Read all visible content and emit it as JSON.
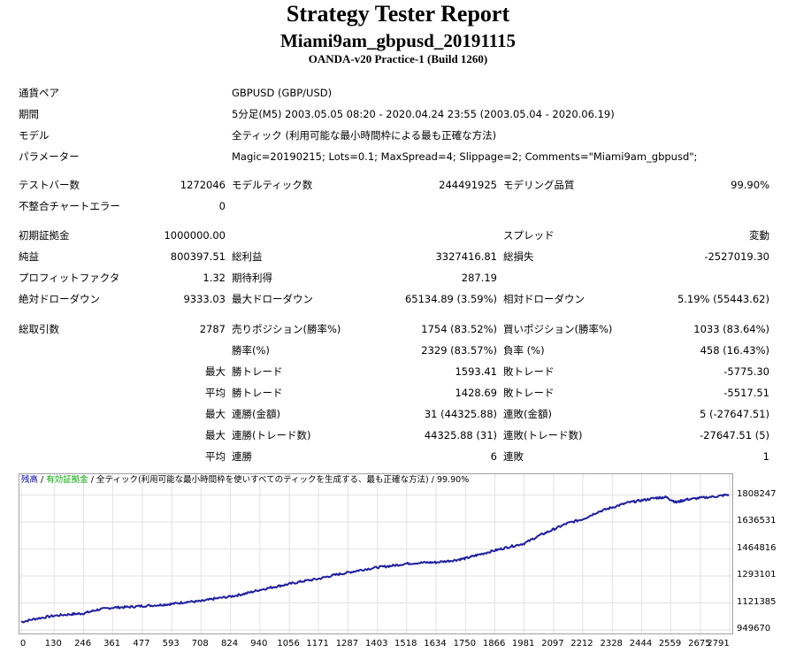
{
  "header": {
    "title": "Strategy Tester Report",
    "ea_name": "Miami9am_gbpusd_20191115",
    "server": "OANDA-v20 Practice-1 (Build 1260)"
  },
  "settings": [
    {
      "label": "通貨ペア",
      "value": "GBPUSD (GBP/USD)"
    },
    {
      "label": "期間",
      "value": "5分足(M5) 2003.05.05 08:20 - 2020.04.24 23:55 (2003.05.04 - 2020.06.19)"
    },
    {
      "label": "モデル",
      "value": "全ティック (利用可能な最小時間枠による最も正確な方法)"
    },
    {
      "label": "パラメーター",
      "value": "Magic=20190215; Lots=0.1; MaxSpread=4; Slippage=2; Comments=\"Miami9am_gbpusd\";"
    }
  ],
  "stats": {
    "bars_label": "テストバー数",
    "bars_value": "1272046",
    "ticks_label": "モデルティック数",
    "ticks_value": "244491925",
    "quality_label": "モデリング品質",
    "quality_value": "99.90%",
    "mismatch_label": "不整合チャートエラー",
    "mismatch_value": "0",
    "deposit_label": "初期証拠金",
    "deposit_value": "1000000.00",
    "spread_label": "スプレッド",
    "spread_value": "変動",
    "net_label": "純益",
    "net_value": "800397.51",
    "gross_profit_label": "総利益",
    "gross_profit_value": "3327416.81",
    "gross_loss_label": "総損失",
    "gross_loss_value": "-2527019.30",
    "pf_label": "プロフィットファクタ",
    "pf_value": "1.32",
    "payoff_label": "期待利得",
    "payoff_value": "287.19",
    "abs_dd_label": "絶対ドローダウン",
    "abs_dd_value": "9333.03",
    "max_dd_label": "最大ドローダウン",
    "max_dd_value": "65134.89 (3.59%)",
    "rel_dd_label": "相対ドローダウン",
    "rel_dd_value": "5.19% (55443.62)",
    "total_trades_label": "総取引数",
    "total_trades_value": "2787",
    "short_label": "売りポジション(勝率%)",
    "short_value": "1754 (83.52%)",
    "long_label": "買いポジション(勝率%)",
    "long_value": "1033 (83.64%)",
    "win_pct_label": "勝率(%)",
    "win_pct_value": "2329 (83.57%)",
    "loss_pct_label": "負率 (%)",
    "loss_pct_value": "458 (16.43%)",
    "max_label": "最大",
    "avg_label": "平均",
    "largest_win_label": "勝トレード",
    "largest_win_value": "1593.41",
    "largest_loss_label": "敗トレード",
    "largest_loss_value": "-5775.30",
    "average_win_label": "勝トレード",
    "average_win_value": "1428.69",
    "average_loss_label": "敗トレード",
    "average_loss_value": "-5517.51",
    "max_cons_wins_label": "連勝(金額)",
    "max_cons_wins_value": "31 (44325.88)",
    "max_cons_losses_label": "連敗(金額)",
    "max_cons_losses_value": "5 (-27647.51)",
    "max_cons_profit_label": "連勝(トレード数)",
    "max_cons_profit_value": "44325.88 (31)",
    "max_cons_loss_label": "連敗(トレード数)",
    "max_cons_loss_value": "-27647.51 (5)",
    "avg_cons_wins_label": "連勝",
    "avg_cons_wins_value": "6",
    "avg_cons_losses_label": "連敗",
    "avg_cons_losses_value": "1"
  },
  "chart_caption": {
    "balance": "残高",
    "sep1": " / ",
    "equity": "有効証拠金",
    "sep2": " / ",
    "rest": "全ティック(利用可能な最小時間枠を使いすべてのティックを生成する、最も正確な方法) / 99.90%",
    "balance_color": "#0000aa",
    "equity_color": "#00aa00"
  },
  "chart_data": {
    "type": "line",
    "title": "",
    "xlabel": "",
    "ylabel": "",
    "x_ticks": [
      0,
      130,
      246,
      361,
      477,
      593,
      708,
      824,
      940,
      1056,
      1171,
      1287,
      1403,
      1518,
      1634,
      1750,
      1866,
      1981,
      2097,
      2212,
      2328,
      2444,
      2559,
      2675,
      2791
    ],
    "y_ticks": [
      949670,
      1121385,
      1293101,
      1464816,
      1636531,
      1808247
    ],
    "xlim": [
      0,
      2787
    ],
    "ylim": [
      949670,
      1851000
    ],
    "series": [
      {
        "color": "#1f1fa0",
        "x": [
          0,
          60,
          130,
          200,
          246,
          300,
          361,
          420,
          477,
          540,
          593,
          650,
          708,
          760,
          824,
          880,
          940,
          1000,
          1056,
          1110,
          1171,
          1230,
          1287,
          1340,
          1403,
          1460,
          1518,
          1580,
          1634,
          1700,
          1750,
          1800,
          1866,
          1920,
          1981,
          2040,
          2097,
          2150,
          2212,
          2270,
          2328,
          2390,
          2444,
          2500,
          2540,
          2580,
          2620,
          2675,
          2740,
          2787
        ],
        "y": [
          1000000,
          1022000,
          1040000,
          1050000,
          1055000,
          1078000,
          1092000,
          1095000,
          1102000,
          1108000,
          1115000,
          1128000,
          1132000,
          1148000,
          1162000,
          1180000,
          1205000,
          1225000,
          1242000,
          1260000,
          1275000,
          1298000,
          1315000,
          1332000,
          1348000,
          1358000,
          1372000,
          1378000,
          1380000,
          1392000,
          1405000,
          1428000,
          1456000,
          1478000,
          1500000,
          1550000,
          1590000,
          1628000,
          1655000,
          1700000,
          1730000,
          1760000,
          1775000,
          1790000,
          1795000,
          1762000,
          1780000,
          1790000,
          1800000,
          1812000
        ]
      }
    ]
  }
}
